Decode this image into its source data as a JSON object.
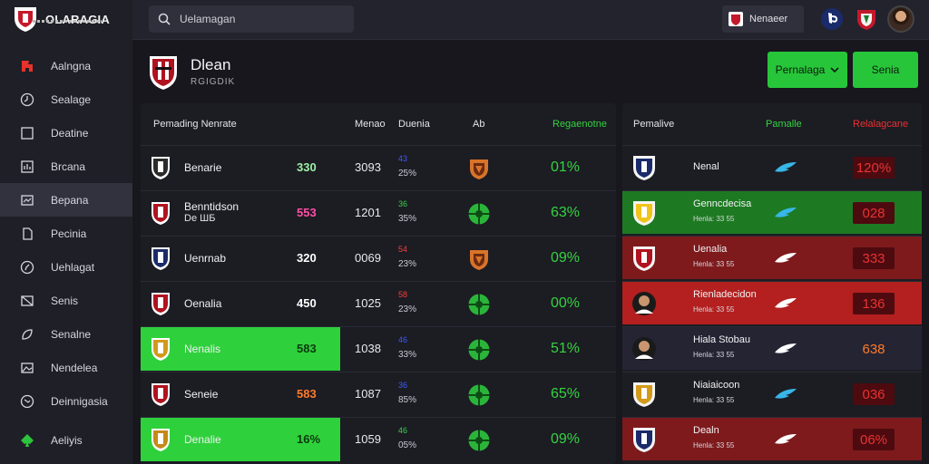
{
  "app": {
    "logo_text": "OLARAGIA"
  },
  "sidebar": {
    "items": [
      {
        "label": "Aalngna",
        "icon": "flag-icon"
      },
      {
        "label": "Sealage",
        "icon": "clock-icon"
      },
      {
        "label": "Deatine",
        "icon": "square-icon"
      },
      {
        "label": "Brcana",
        "icon": "chart-icon"
      },
      {
        "label": "Bepana",
        "icon": "screen-icon"
      },
      {
        "label": "Pecinia",
        "icon": "doc-icon"
      },
      {
        "label": "Uehlagat",
        "icon": "compass-icon"
      },
      {
        "label": "Senis",
        "icon": "mail-icon"
      },
      {
        "label": "Senalne",
        "icon": "leaf-icon"
      },
      {
        "label": "Nendelea",
        "icon": "image-icon"
      },
      {
        "label": "Deinnigasia",
        "icon": "globe-icon"
      },
      {
        "label": "Aeliyis",
        "icon": "spade-icon"
      }
    ]
  },
  "topbar": {
    "search_placeholder": "Uelamagan",
    "user_chip": "Nenaeer"
  },
  "header": {
    "title": "Dlean",
    "subtitle": "RGIGDIK",
    "btn_dropdown": "Pernalaga",
    "btn_action": "Senia"
  },
  "table": {
    "headers": [
      "Pemading Nenrate",
      "Menao",
      "Duenia",
      "Ab",
      "Regaenotne"
    ],
    "rows": [
      {
        "name": "Benarie",
        "name2": "",
        "value": "330",
        "value_color": "#9cf0a4",
        "num": "3093",
        "mini1": "43",
        "mini1_color": "#3c5cff",
        "mini2": "25%",
        "icon": "shield-orange-icon",
        "pct": "01%",
        "highlight": false
      },
      {
        "name": "Benntidson",
        "name2": "Dе ШБ",
        "value": "553",
        "value_color": "#ff4fa6",
        "num": "1201",
        "mini1": "36",
        "mini1_color": "#3ad24a",
        "mini2": "35%",
        "icon": "ball-green-icon",
        "pct": "63%",
        "highlight": false
      },
      {
        "name": "Uenrnab",
        "name2": "",
        "value": "320",
        "value_color": "#ffffff",
        "num": "0069",
        "mini1": "54",
        "mini1_color": "#ff3a3a",
        "mini2": "23%",
        "icon": "shield-orange-icon",
        "pct": "09%",
        "highlight": false
      },
      {
        "name": "Oenalia",
        "name2": "",
        "value": "450",
        "value_color": "#ffffff",
        "num": "1025",
        "mini1": "58",
        "mini1_color": "#ff3a3a",
        "mini2": "23%",
        "icon": "ball-green-icon",
        "pct": "00%",
        "highlight": false
      },
      {
        "name": "Nenalis",
        "name2": "",
        "value": "583",
        "value_color": "#0d3a10",
        "num": "1038",
        "mini1": "46",
        "mini1_color": "#3c5cff",
        "mini2": "33%",
        "icon": "ball-green-icon",
        "pct": "51%",
        "highlight": true
      },
      {
        "name": "Seneie",
        "name2": "",
        "value": "583",
        "value_color": "#ff7a2a",
        "num": "1087",
        "mini1": "36",
        "mini1_color": "#3c5cff",
        "mini2": "85%",
        "icon": "ball-green-icon",
        "pct": "65%",
        "highlight": false
      },
      {
        "name": "Denalie",
        "name2": "",
        "value": "16%",
        "value_color": "#0d3a10",
        "num": "1059",
        "mini1": "46",
        "mini1_color": "#3ad24a",
        "mini2": "05%",
        "icon": "ball-green-icon",
        "pct": "09%",
        "highlight": true
      }
    ]
  },
  "panel": {
    "headers": [
      "Pemalive",
      "Pamalle",
      "Relalagcane"
    ],
    "rows": [
      {
        "name": "Nenal",
        "sub": "",
        "badge": "120%",
        "style": "",
        "badge_style": ""
      },
      {
        "name": "Genncdecisa",
        "sub": "Henla: 33 55",
        "badge": "028",
        "style": "green",
        "badge_style": ""
      },
      {
        "name": "Uenalia",
        "sub": "Henla: 33 55",
        "badge": "333",
        "style": "darkred",
        "badge_style": ""
      },
      {
        "name": "Rienladecidon",
        "sub": "Henla: 33 55",
        "badge": "136",
        "style": "red",
        "badge_style": ""
      },
      {
        "name": "Hiala Stobau",
        "sub": "Henla: 33 55",
        "badge": "638",
        "style": "dark",
        "badge_style": "orange"
      },
      {
        "name": "Niaiaicoon",
        "sub": "Henla: 33 55",
        "badge": "036",
        "style": "",
        "badge_style": ""
      },
      {
        "name": "Dealn",
        "sub": "Henla: 33 55",
        "badge": "06%",
        "style": "darkred",
        "badge_style": ""
      }
    ]
  },
  "colors": {
    "accent_green": "#27c63a",
    "badge_red": "#e83232"
  }
}
